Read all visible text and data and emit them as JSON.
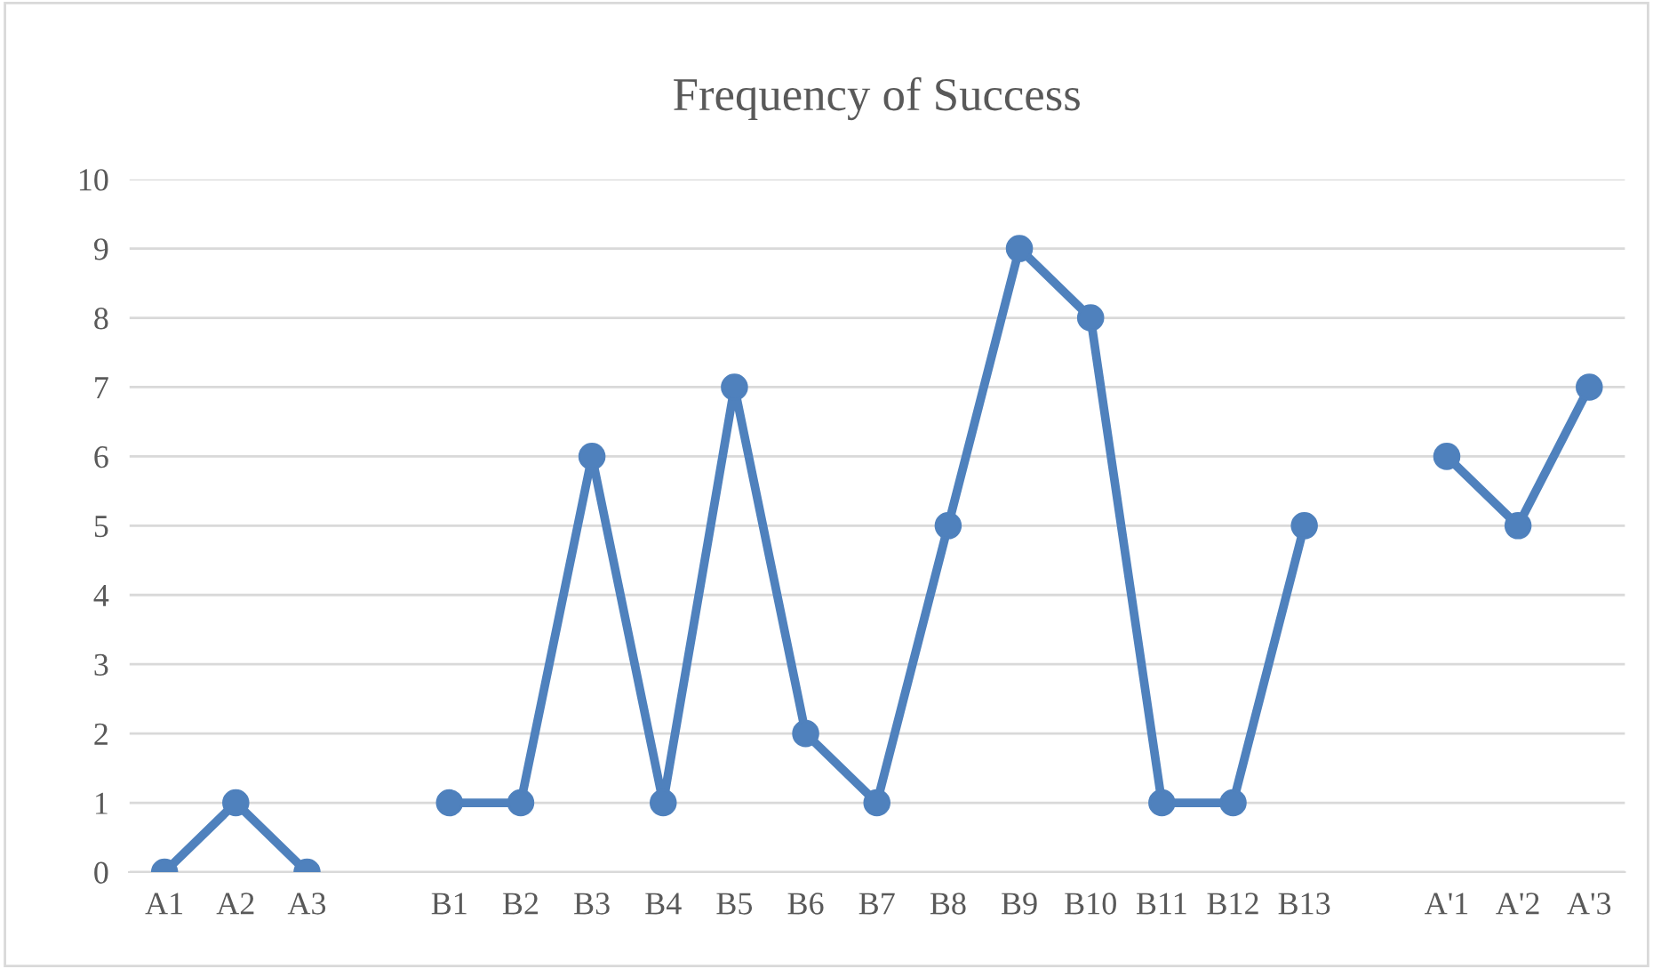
{
  "chart_data": {
    "type": "line",
    "title": "Frequency of Success",
    "categories": [
      "A1",
      "A2",
      "A3",
      null,
      "B1",
      "B2",
      "B3",
      "B4",
      "B5",
      "B6",
      "B7",
      "B8",
      "B9",
      "B10",
      "B11",
      "B12",
      "B13",
      null,
      "A'1",
      "A'2",
      "A'3"
    ],
    "series": [
      {
        "color": "#4f81bd",
        "values": [
          0,
          1,
          0,
          null,
          1,
          1,
          6,
          1,
          7,
          2,
          1,
          5,
          9,
          8,
          1,
          1,
          5,
          null,
          6,
          5,
          7
        ]
      }
    ],
    "ylim": [
      0,
      10
    ],
    "yticks": [
      0,
      1,
      2,
      3,
      4,
      5,
      6,
      7,
      8,
      9,
      10
    ],
    "grid": "y",
    "marker": "circle",
    "line_style": "solid"
  }
}
